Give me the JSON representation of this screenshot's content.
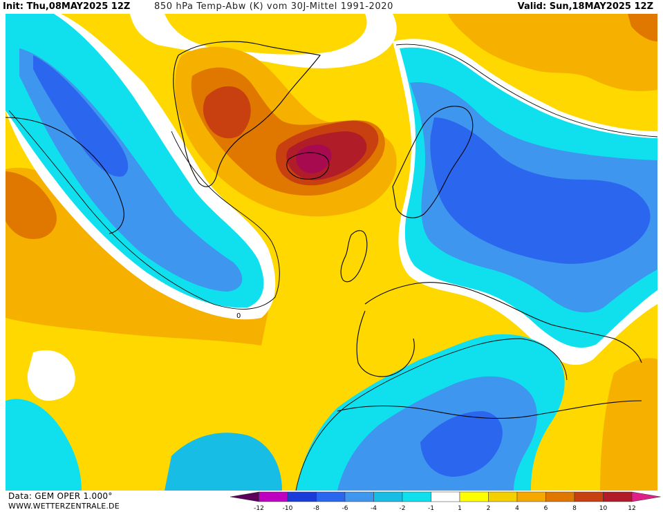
{
  "header": {
    "init": "Init: Thu,08MAY2025 12Z",
    "title": "850 hPa Temp-Abw (K) vom 30J-Mittel 1991-2020",
    "valid": "Valid: Sun,18MAY2025 12Z"
  },
  "footer": {
    "data_source": "Data: GEM OPER 1.000°",
    "website": "WWW.WETTERZENTRALE.DE"
  },
  "legend": {
    "ticks": [
      "-12",
      "-10",
      "-8",
      "-6",
      "-4",
      "-2",
      "-1",
      "1",
      "2",
      "4",
      "6",
      "8",
      "10",
      "12"
    ],
    "colors": [
      "#5c005c",
      "#c000c0",
      "#1a3cd8",
      "#2b66ee",
      "#3e96ee",
      "#18bde6",
      "#10e0ee",
      "#ffffff",
      "#ffff00",
      "#f5d000",
      "#f5a800",
      "#e07800",
      "#c84010",
      "#b01c28",
      "#e0208a"
    ]
  },
  "map": {
    "contour_label": "0",
    "palette": {
      "neutral": "#ffffff",
      "cold1": "#10e0ee",
      "cold2": "#18bde6",
      "cold3": "#3e96ee",
      "cold4": "#2b66ee",
      "warm1": "#ffd800",
      "warm2": "#f5b000",
      "warm3": "#e07800",
      "warm4": "#c84010",
      "warm5": "#b01c28",
      "warm6": "#a80a50"
    }
  }
}
